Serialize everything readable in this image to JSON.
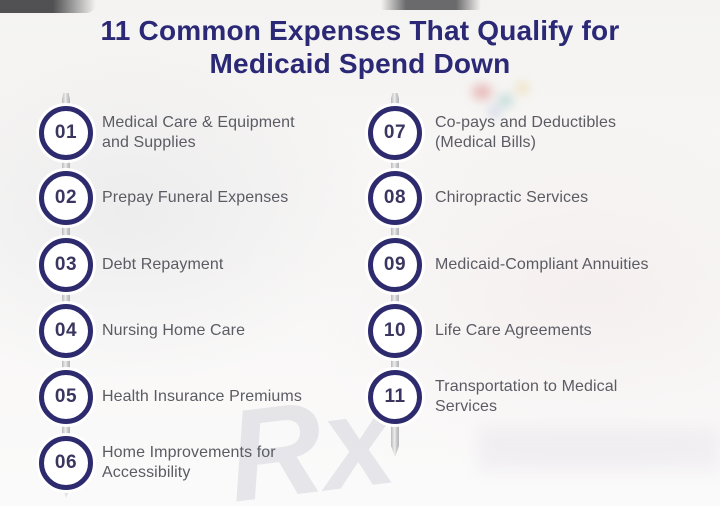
{
  "title": {
    "line1": "11 Common Expenses That Qualify for",
    "line2": "Medicaid Spend Down"
  },
  "columns": [
    {
      "items": [
        {
          "number": "01",
          "label": "Medical Care & Equipment\nand Supplies"
        },
        {
          "number": "02",
          "label": "Prepay Funeral Expenses"
        },
        {
          "number": "03",
          "label": "Debt Repayment"
        },
        {
          "number": "04",
          "label": "Nursing Home Care"
        },
        {
          "number": "05",
          "label": "Health Insurance Premiums"
        },
        {
          "number": "06",
          "label": "Home Improvements for\nAccessibility"
        }
      ]
    },
    {
      "items": [
        {
          "number": "07",
          "label": "Co-pays and Deductibles\n(Medical Bills)"
        },
        {
          "number": "08",
          "label": "Chiropractic Services"
        },
        {
          "number": "09",
          "label": "Medicaid-Compliant Annuities"
        },
        {
          "number": "10",
          "label": "Life Care Agreements"
        },
        {
          "number": "11",
          "label": "Transportation to Medical\nServices"
        }
      ]
    }
  ],
  "watermark": "Rx",
  "colors": {
    "title": "#2b2875",
    "circle_border": "#2e2a6e",
    "number": "#3a3660",
    "item_text": "#5b5b63",
    "rod": "#bcbcbe",
    "background": "#f6f5f3"
  }
}
